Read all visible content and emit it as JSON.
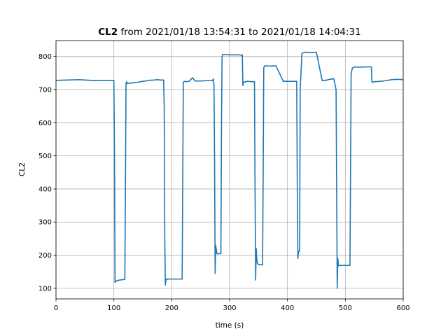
{
  "chart_data": {
    "type": "line",
    "title_bold": "CL2",
    "title_rest": " from 2021/01/18 13:54:31 to 2021/01/18 14:04:31",
    "xlabel": "time (s)",
    "ylabel": "CL2",
    "xlim": [
      0,
      600
    ],
    "ylim": [
      68,
      848
    ],
    "xticks": [
      0,
      100,
      200,
      300,
      400,
      500,
      600
    ],
    "yticks": [
      100,
      200,
      300,
      400,
      500,
      600,
      700,
      800
    ],
    "grid": true,
    "series": [
      {
        "color": "#1f77b4",
        "x": [
          0,
          40,
          60,
          100,
          101,
          102,
          104,
          110,
          115,
          119,
          120,
          121,
          122,
          123,
          130,
          140,
          150,
          155,
          160,
          170,
          175,
          180,
          186,
          187,
          188,
          189,
          190,
          191,
          192,
          195,
          200,
          210,
          218,
          219,
          220,
          222,
          225,
          230,
          236,
          240,
          250,
          260,
          270,
          272,
          273,
          274,
          275,
          276,
          278,
          280,
          285,
          286,
          287,
          288,
          290,
          300,
          315,
          320,
          322,
          323,
          324,
          330,
          340,
          343,
          344,
          345,
          346,
          347,
          348,
          350,
          352,
          354,
          357,
          358,
          359,
          360,
          361,
          362,
          370,
          380,
          393,
          394,
          395,
          400,
          410,
          416,
          417,
          418,
          419,
          420,
          421,
          422,
          425,
          429,
          430,
          431,
          440,
          450,
          460,
          465,
          466,
          467,
          470,
          480,
          484,
          485,
          486,
          487,
          488,
          489,
          490,
          491,
          492,
          495,
          500,
          508,
          509,
          510,
          512,
          515,
          520,
          530,
          544,
          545,
          546,
          550,
          560,
          570,
          580,
          590,
          600
        ],
        "y": [
          728,
          730,
          728,
          728,
          530,
          118,
          122,
          125,
          126,
          127,
          400,
          720,
          724,
          718,
          720,
          722,
          725,
          726,
          728,
          729,
          730,
          729,
          729,
          650,
          250,
          110,
          125,
          128,
          127,
          128,
          128,
          128,
          128,
          420,
          722,
          725,
          724,
          725,
          736,
          726,
          726,
          727,
          727,
          732,
          712,
          500,
          145,
          230,
          205,
          204,
          205,
          600,
          800,
          806,
          806,
          805,
          805,
          804,
          805,
          712,
          722,
          725,
          724,
          724,
          400,
          125,
          220,
          190,
          175,
          172,
          172,
          171,
          171,
          450,
          765,
          770,
          772,
          772,
          771,
          772,
          724,
          726,
          725,
          725,
          725,
          725,
          400,
          190,
          210,
          212,
          212,
          700,
          810,
          812,
          812,
          813,
          812,
          813,
          727,
          728,
          729,
          728,
          730,
          733,
          700,
          400,
          100,
          190,
          170,
          168,
          169,
          169,
          169,
          169,
          169,
          169,
          450,
          745,
          765,
          768,
          768,
          768,
          769,
          768,
          722,
          724,
          725,
          727,
          730,
          731,
          730
        ]
      }
    ]
  }
}
